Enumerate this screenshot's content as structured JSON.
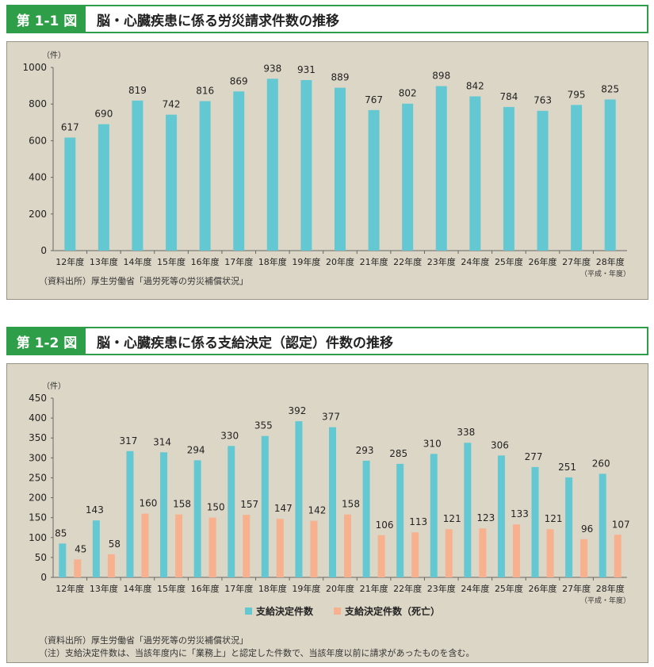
{
  "colors": {
    "teal": "#64c8d2",
    "salmon": "#f7b18e",
    "green": "#2f9e48",
    "panel": "#dcd6c6"
  },
  "fig1": {
    "tag": "第 1-1 図",
    "title": "脳・心臓疾患に係る労災請求件数の推移",
    "source": "（資料出所）厚生労働省「過労死等の労災補償状況」",
    "unit": "（件）",
    "era_note": "（平成・年度）"
  },
  "fig2": {
    "tag": "第 1-2 図",
    "title": "脳・心臓疾患に係る支給決定（認定）件数の推移",
    "source": "（資料出所）厚生労働省「過労死等の労災補償状況」",
    "note": "（注）支給決定件数は、当該年度内に「業務上」と認定した件数で、当該年度以前に請求があったものを含む。",
    "unit": "（件）",
    "era_note": "（平成・年度）"
  },
  "chart_data": [
    {
      "type": "bar",
      "title": "脳・心臓疾患に係る労災請求件数の推移",
      "ylabel": "（件）",
      "xlabel": "（平成・年度）",
      "ylim": [
        0,
        1000
      ],
      "yticks": [
        0,
        200,
        400,
        600,
        800,
        1000
      ],
      "categories": [
        "12年度",
        "13年度",
        "14年度",
        "15年度",
        "16年度",
        "17年度",
        "18年度",
        "19年度",
        "20年度",
        "21年度",
        "22年度",
        "23年度",
        "24年度",
        "25年度",
        "26年度",
        "27年度",
        "28年度"
      ],
      "series": [
        {
          "name": "請求件数",
          "color": "#64c8d2",
          "values": [
            617,
            690,
            819,
            742,
            816,
            869,
            938,
            931,
            889,
            767,
            802,
            898,
            842,
            784,
            763,
            795,
            825
          ]
        }
      ]
    },
    {
      "type": "bar",
      "title": "脳・心臓疾患に係る支給決定（認定）件数の推移",
      "ylabel": "（件）",
      "xlabel": "（平成・年度）",
      "ylim": [
        0,
        450
      ],
      "yticks": [
        0,
        50,
        100,
        150,
        200,
        250,
        300,
        350,
        400,
        450
      ],
      "categories": [
        "12年度",
        "13年度",
        "14年度",
        "15年度",
        "16年度",
        "17年度",
        "18年度",
        "19年度",
        "20年度",
        "21年度",
        "22年度",
        "23年度",
        "24年度",
        "25年度",
        "26年度",
        "27年度",
        "28年度"
      ],
      "series": [
        {
          "name": "支給決定件数",
          "color": "#64c8d2",
          "values": [
            85,
            143,
            317,
            314,
            294,
            330,
            355,
            392,
            377,
            293,
            285,
            310,
            338,
            306,
            277,
            251,
            260
          ]
        },
        {
          "name": "支給決定件数（死亡）",
          "color": "#f7b18e",
          "values": [
            45,
            58,
            160,
            158,
            150,
            157,
            147,
            142,
            158,
            106,
            113,
            121,
            123,
            133,
            121,
            96,
            107
          ]
        }
      ],
      "legend": "bottom-center"
    }
  ]
}
